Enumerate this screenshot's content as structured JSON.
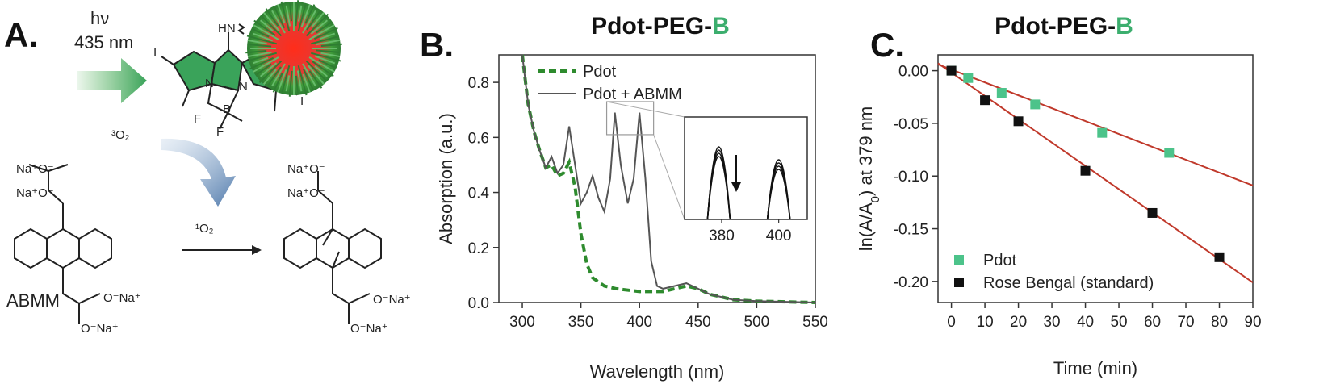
{
  "panel_a": {
    "letter": "A.",
    "light_label": "hν",
    "wavelength_label": "435 nm",
    "triplet_label": "³O₂",
    "singlet_label": "¹O₂",
    "probe_label": "ABMM",
    "amine_label": "HN",
    "iodine_label": "I",
    "boron_label": "B",
    "fluorine_label": "F",
    "nitrogen_label": "N",
    "carboxylate_label": "Na⁺O⁻",
    "sodium_label": "O⁻Na⁺",
    "colors": {
      "arrow_green": "#4caf50",
      "arrow_blue": "#5b84b1",
      "bodipy_green": "#3aa35a",
      "pdot_red": "#e53935"
    }
  },
  "panel_b": {
    "letter": "B.",
    "title_prefix": "Pdot-PEG-",
    "title_suffix": "B",
    "title_suffix_color": "#3cae6e",
    "chart_data": {
      "type": "line",
      "xlabel": "Wavelength (nm)",
      "ylabel": "Absorption (a.u.)",
      "xlim": [
        280,
        550
      ],
      "ylim": [
        0,
        0.9
      ],
      "xticks": [
        300,
        350,
        400,
        450,
        500,
        550
      ],
      "yticks": [
        0.0,
        0.2,
        0.4,
        0.6,
        0.8
      ],
      "legend_position": "top-left",
      "series": [
        {
          "name": "Pdot",
          "color": "#2e8b2e",
          "dash": true,
          "points": [
            [
              300,
              0.9
            ],
            [
              305,
              0.72
            ],
            [
              310,
              0.62
            ],
            [
              315,
              0.55
            ],
            [
              320,
              0.49
            ],
            [
              325,
              0.5
            ],
            [
              330,
              0.46
            ],
            [
              335,
              0.47
            ],
            [
              340,
              0.51
            ],
            [
              345,
              0.42
            ],
            [
              350,
              0.25
            ],
            [
              355,
              0.14
            ],
            [
              360,
              0.09
            ],
            [
              370,
              0.06
            ],
            [
              380,
              0.05
            ],
            [
              400,
              0.04
            ],
            [
              420,
              0.04
            ],
            [
              430,
              0.05
            ],
            [
              440,
              0.06
            ],
            [
              450,
              0.05
            ],
            [
              460,
              0.03
            ],
            [
              480,
              0.01
            ],
            [
              500,
              0.005
            ],
            [
              550,
              0.0
            ]
          ]
        },
        {
          "name": "Pdot + ABMM",
          "color": "#555555",
          "dash": false,
          "points": [
            [
              300,
              0.9
            ],
            [
              305,
              0.72
            ],
            [
              310,
              0.62
            ],
            [
              315,
              0.55
            ],
            [
              320,
              0.49
            ],
            [
              325,
              0.53
            ],
            [
              330,
              0.47
            ],
            [
              335,
              0.5
            ],
            [
              340,
              0.64
            ],
            [
              345,
              0.5
            ],
            [
              350,
              0.36
            ],
            [
              355,
              0.4
            ],
            [
              360,
              0.46
            ],
            [
              365,
              0.38
            ],
            [
              370,
              0.33
            ],
            [
              375,
              0.45
            ],
            [
              379,
              0.69
            ],
            [
              384,
              0.5
            ],
            [
              390,
              0.36
            ],
            [
              395,
              0.45
            ],
            [
              400,
              0.69
            ],
            [
              405,
              0.45
            ],
            [
              410,
              0.15
            ],
            [
              415,
              0.06
            ],
            [
              420,
              0.05
            ],
            [
              430,
              0.06
            ],
            [
              440,
              0.07
            ],
            [
              450,
              0.05
            ],
            [
              460,
              0.03
            ],
            [
              480,
              0.01
            ],
            [
              500,
              0.005
            ],
            [
              550,
              0.0
            ]
          ]
        }
      ],
      "inset": {
        "xticks": [
          380,
          400
        ],
        "annotation": "decreasing peaks (arrow)"
      }
    }
  },
  "panel_c": {
    "letter": "C.",
    "title_prefix": "Pdot-PEG-",
    "title_suffix": "B",
    "title_suffix_color": "#3cae6e",
    "chart_data": {
      "type": "scatter",
      "xlabel": "Time (min)",
      "ylabel_main": "ln(A/A",
      "ylabel_sub": "0",
      "ylabel_tail": ") at 379 nm",
      "xlim": [
        -4,
        90
      ],
      "ylim": [
        -0.22,
        0.015
      ],
      "xticks": [
        0,
        10,
        20,
        30,
        40,
        50,
        60,
        70,
        80,
        90
      ],
      "yticks": [
        0.0,
        -0.05,
        -0.1,
        -0.15,
        -0.2
      ],
      "ytick_labels": [
        "0.00",
        "-0.05",
        "-0.10",
        "-0.15",
        "-0.20"
      ],
      "legend_position": "bottom-left",
      "fit_color": "#c0392b",
      "series": [
        {
          "name": "Pdot",
          "color": "#4cc38a",
          "points": [
            [
              0,
              0.0
            ],
            [
              5,
              -0.007
            ],
            [
              15,
              -0.021
            ],
            [
              25,
              -0.032
            ],
            [
              45,
              -0.059
            ],
            [
              65,
              -0.078
            ]
          ],
          "fit": [
            [
              -4,
              0.006
            ],
            [
              90,
              -0.109
            ]
          ]
        },
        {
          "name": "Rose Bengal (standard)",
          "color": "#111111",
          "points": [
            [
              0,
              0.0
            ],
            [
              10,
              -0.028
            ],
            [
              20,
              -0.048
            ],
            [
              40,
              -0.095
            ],
            [
              60,
              -0.135
            ],
            [
              80,
              -0.177
            ]
          ],
          "fit": [
            [
              -4,
              0.007
            ],
            [
              90,
              -0.201
            ]
          ]
        }
      ]
    }
  }
}
